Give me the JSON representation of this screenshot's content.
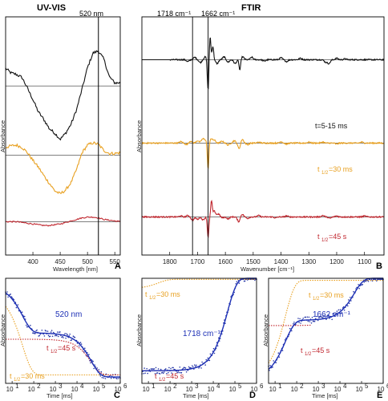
{
  "colors": {
    "black": "#111111",
    "orange": "#e8a020",
    "red": "#c0262e",
    "blue": "#1c2fb5",
    "dots": "#2a3aa8"
  },
  "chart_data": [
    {
      "id": "A",
      "type": "line",
      "title": "UV-VIS",
      "xlabel": "Wavelength [nm]",
      "ylabel": "Absorbance",
      "xlim": [
        350,
        560
      ],
      "xticks": [
        400,
        450,
        500,
        550
      ],
      "marker": {
        "x": 520,
        "label": "520 nm"
      },
      "series": [
        {
          "color": "black",
          "offset": 0.71,
          "x": [
            350,
            360,
            370,
            380,
            390,
            400,
            410,
            420,
            430,
            440,
            450,
            460,
            470,
            480,
            490,
            500,
            510,
            520,
            530,
            540,
            550,
            560
          ],
          "y": [
            0.23,
            0.17,
            0.15,
            0.11,
            -0.03,
            -0.18,
            -0.34,
            -0.44,
            -0.56,
            -0.62,
            -0.7,
            -0.62,
            -0.5,
            -0.31,
            -0.04,
            0.24,
            0.43,
            0.46,
            0.35,
            0.12,
            0.04,
            0.04
          ]
        },
        {
          "color": "orange",
          "offset": 0.42,
          "x": [
            350,
            360,
            370,
            380,
            390,
            400,
            410,
            420,
            430,
            440,
            450,
            460,
            470,
            480,
            490,
            500,
            510,
            520,
            530,
            540,
            550,
            560
          ],
          "y": [
            0.1,
            0.12,
            0.13,
            0.1,
            0.03,
            -0.07,
            -0.16,
            -0.27,
            -0.37,
            -0.47,
            -0.51,
            -0.46,
            -0.36,
            -0.19,
            0.03,
            0.13,
            0.16,
            0.14,
            0.06,
            0.02,
            0.02,
            0.03
          ]
        },
        {
          "color": "red",
          "offset": 0.14,
          "x": [
            350,
            360,
            370,
            380,
            390,
            400,
            410,
            420,
            430,
            440,
            450,
            460,
            470,
            480,
            490,
            500,
            510,
            520,
            530,
            540,
            550,
            560
          ],
          "y": [
            0.0,
            0.0,
            0.0,
            -0.01,
            -0.02,
            -0.03,
            -0.04,
            -0.05,
            -0.05,
            -0.04,
            -0.03,
            -0.01,
            0.01,
            0.03,
            0.05,
            0.06,
            0.06,
            0.05,
            0.03,
            0.02,
            0.01,
            0.0
          ]
        }
      ]
    },
    {
      "id": "B",
      "type": "line",
      "title": "FTIR",
      "xlabel": "Wavenumber [cm⁻¹]",
      "ylabel": "Absorbance",
      "xlim": [
        1900,
        1030
      ],
      "xticks": [
        1800,
        1700,
        1600,
        1500,
        1400,
        1300,
        1200,
        1100
      ],
      "markers": [
        {
          "x": 1718,
          "label": "1718 cm⁻¹"
        },
        {
          "x": 1662,
          "label": "1662 cm⁻¹"
        }
      ],
      "annotations": [
        "t=5-15 ms",
        "t",
        "1/2",
        "=30 ms",
        "t",
        "1/2",
        "=45 s"
      ],
      "series": [
        {
          "color": "black",
          "offset": 0.82,
          "peaks": [
            [
              1735,
              -0.04
            ],
            [
              1710,
              0.05
            ],
            [
              1690,
              -0.06
            ],
            [
              1672,
              0.06
            ],
            [
              1662,
              -0.65
            ],
            [
              1655,
              0.5
            ],
            [
              1645,
              0.28
            ],
            [
              1630,
              -0.08
            ],
            [
              1605,
              0.06
            ],
            [
              1590,
              -0.05
            ],
            [
              1565,
              -0.08
            ],
            [
              1548,
              -0.22
            ],
            [
              1538,
              0.06
            ],
            [
              1505,
              0.05
            ],
            [
              1460,
              -0.03
            ],
            [
              1400,
              0.04
            ],
            [
              1380,
              -0.04
            ],
            [
              1330,
              0.03
            ],
            [
              1240,
              -0.05
            ],
            [
              1228,
              -0.08
            ],
            [
              1200,
              0.03
            ],
            [
              1170,
              0.02
            ]
          ]
        },
        {
          "color": "orange",
          "offset": 0.47,
          "peaks": [
            [
              1760,
              0.03
            ],
            [
              1740,
              -0.03
            ],
            [
              1725,
              0.04
            ],
            [
              1700,
              0.05
            ],
            [
              1682,
              0.08
            ],
            [
              1672,
              0.06
            ],
            [
              1662,
              -0.55
            ],
            [
              1652,
              0.09
            ],
            [
              1640,
              0.06
            ],
            [
              1612,
              0.04
            ],
            [
              1590,
              -0.04
            ],
            [
              1568,
              0.05
            ],
            [
              1550,
              -0.12
            ],
            [
              1540,
              0.09
            ],
            [
              1520,
              -0.03
            ],
            [
              1480,
              0.02
            ],
            [
              1400,
              0.03
            ],
            [
              1380,
              -0.02
            ],
            [
              1300,
              0.02
            ],
            [
              1250,
              0.02
            ],
            [
              1200,
              -0.02
            ],
            [
              1110,
              0.02
            ]
          ]
        },
        {
          "color": "red",
          "offset": 0.16,
          "peaks": [
            [
              1760,
              0.02
            ],
            [
              1735,
              0.03
            ],
            [
              1718,
              -0.07
            ],
            [
              1700,
              -0.05
            ],
            [
              1680,
              -0.06
            ],
            [
              1662,
              -0.42
            ],
            [
              1650,
              0.32
            ],
            [
              1640,
              0.12
            ],
            [
              1625,
              0.06
            ],
            [
              1610,
              -0.02
            ],
            [
              1590,
              -0.04
            ],
            [
              1552,
              -0.1
            ],
            [
              1540,
              0.06
            ],
            [
              1520,
              -0.03
            ],
            [
              1480,
              0.03
            ],
            [
              1420,
              -0.02
            ],
            [
              1380,
              0.02
            ],
            [
              1250,
              0.03
            ],
            [
              1225,
              -0.03
            ],
            [
              1200,
              0.02
            ],
            [
              1100,
              0.02
            ]
          ]
        }
      ]
    },
    {
      "id": "C",
      "type": "scatter",
      "xscale": "log",
      "xlim": [
        5,
        1000000
      ],
      "xlabel": "Time [ms]",
      "ylabel": "Absorbance",
      "label": "520 nm",
      "fit_tau": [
        30,
        45000
      ],
      "fit_amp": [
        0.45,
        0.42
      ],
      "fit_base": 0.06,
      "orange_curve": {
        "tau": 30,
        "start": 0.85,
        "end": 0.08
      },
      "red_curve": {
        "tau": 45000,
        "start": 0.42,
        "end": 0.08
      }
    },
    {
      "id": "D",
      "type": "scatter",
      "xscale": "log",
      "xlim": [
        5,
        1000000
      ],
      "xlabel": "Time [ms]",
      "ylabel": "Absorbance",
      "label": "1718 cm⁻¹",
      "fit_tau": [
        45000
      ],
      "fit_amp": [
        0.88
      ],
      "fit_base": 0.12,
      "orange_curve": {
        "tau": 30,
        "start": 0.9,
        "end": 0.99
      },
      "red_curve": {
        "tau": 45000,
        "start": 0.12,
        "end": 0.12
      }
    },
    {
      "id": "E",
      "type": "scatter",
      "xscale": "log",
      "xlim": [
        5,
        1000000
      ],
      "xlabel": "Time [ms]",
      "ylabel": "Absorbance",
      "label": "1662 cm⁻¹",
      "fit_tau": [
        30,
        45000
      ],
      "fit_amp": [
        0.55,
        0.4
      ],
      "fit_base": 0.05,
      "orange_curve": {
        "tau": 30,
        "start": 0.05,
        "end": 0.98
      },
      "red_curve": {
        "tau": 45000,
        "start": 0.55,
        "end": 0.55
      }
    }
  ],
  "labels": {
    "A": "A",
    "B": "B",
    "C": "C",
    "D": "D",
    "E": "E",
    "t": "t",
    "half": "1/2",
    "ann_30ms": "=30 ms",
    "ann_45s": "=45 s",
    "log_ticks": [
      "10",
      "10",
      "10",
      "10",
      "10",
      "10"
    ],
    "log_exps": [
      "1",
      "2",
      "3",
      "4",
      "5",
      "6"
    ],
    "ann_5_15": "t=5-15 ms"
  }
}
